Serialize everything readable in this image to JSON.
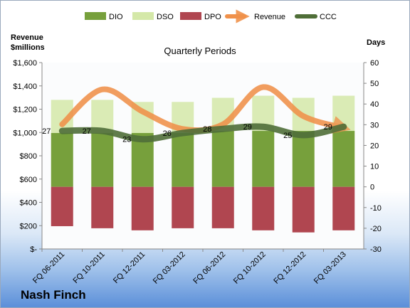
{
  "company": "Nash Finch",
  "chart_data": {
    "type": "bar",
    "title": "Quarterly Periods",
    "ylabel_left": [
      "Revenue",
      "$millions"
    ],
    "ylabel_right": "Days",
    "categories": [
      "FQ 06-2011",
      "FQ 10-2011",
      "FQ 12-2011",
      "FQ 03-2012",
      "FQ 06-2012",
      "FQ 10-2012",
      "FQ 12-2012",
      "FQ 03-2013"
    ],
    "yticks_left": [
      "$-",
      "$200",
      "$400",
      "$600",
      "$800",
      "$1,000",
      "$1,200",
      "$1,400",
      "$1,600"
    ],
    "yticks_right": [
      "-30",
      "-20",
      "-10",
      "0",
      "10",
      "20",
      "30",
      "40",
      "50",
      "60"
    ],
    "ylim_left": [
      0,
      1600
    ],
    "ylim_right": [
      -30,
      60
    ],
    "grid": false,
    "legend_position": "top",
    "series": [
      {
        "name": "DIO",
        "type": "bar",
        "axis": "right",
        "values": [
          26,
          26,
          26,
          26,
          27,
          27,
          27,
          27
        ],
        "color": "#77a03c"
      },
      {
        "name": "DSO",
        "type": "bar-stacked",
        "axis": "right",
        "values": [
          16,
          16,
          15,
          15,
          16,
          17,
          16,
          17
        ],
        "color": "#d4e8a8"
      },
      {
        "name": "DPO",
        "type": "bar-negative",
        "axis": "right",
        "values": [
          -19,
          -20,
          -21,
          -20,
          -20,
          -21,
          -22,
          -21
        ],
        "color": "#b04650"
      },
      {
        "name": "Revenue",
        "type": "line",
        "axis": "left",
        "values": [
          1070,
          1370,
          1180,
          1030,
          1070,
          1390,
          1140,
          1040
        ],
        "color": "#f0914a"
      },
      {
        "name": "CCC",
        "type": "line",
        "axis": "right",
        "values": [
          27,
          27,
          23,
          26,
          28,
          29,
          25,
          29
        ],
        "color": "#4f6e38"
      }
    ],
    "ccc_labels": [
      "27",
      "27",
      "23",
      "26",
      "28",
      "29",
      "25",
      "29"
    ]
  }
}
